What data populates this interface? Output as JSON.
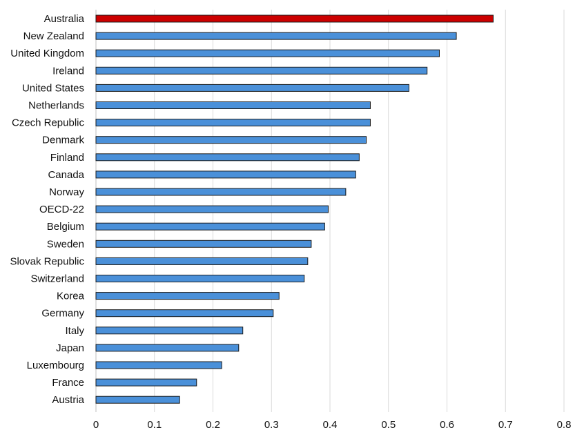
{
  "chart_data": {
    "type": "bar",
    "orientation": "horizontal",
    "title": "",
    "xlabel": "",
    "ylabel": "",
    "categories": [
      "Australia",
      "New Zealand",
      "United Kingdom",
      "Ireland",
      "United States",
      "Netherlands",
      "Czech Republic",
      "Denmark",
      "Finland",
      "Canada",
      "Norway",
      "OECD-22",
      "Belgium",
      "Sweden",
      "Slovak Republic",
      "Switzerland",
      "Korea",
      "Germany",
      "Italy",
      "Japan",
      "Luxembourg",
      "France",
      "Austria"
    ],
    "values": [
      0.679,
      0.616,
      0.587,
      0.566,
      0.535,
      0.469,
      0.469,
      0.462,
      0.45,
      0.444,
      0.427,
      0.397,
      0.391,
      0.368,
      0.362,
      0.356,
      0.313,
      0.303,
      0.251,
      0.244,
      0.215,
      0.172,
      0.143
    ],
    "highlight": "Australia",
    "xlim": [
      0,
      0.8
    ],
    "xticks": [
      0,
      0.1,
      0.2,
      0.3,
      0.4,
      0.5,
      0.6,
      0.7,
      0.8
    ],
    "xtick_labels": [
      "0",
      "0.1",
      "0.2",
      "0.3",
      "0.4",
      "0.5",
      "0.6",
      "0.7",
      "0.8"
    ],
    "grid": "vertical",
    "legend": "none",
    "colors": {
      "bar": "#4a90d9",
      "highlight": "#cc0000",
      "bar_stroke": "#1a1a1a",
      "grid": "#d9d9d9"
    }
  }
}
